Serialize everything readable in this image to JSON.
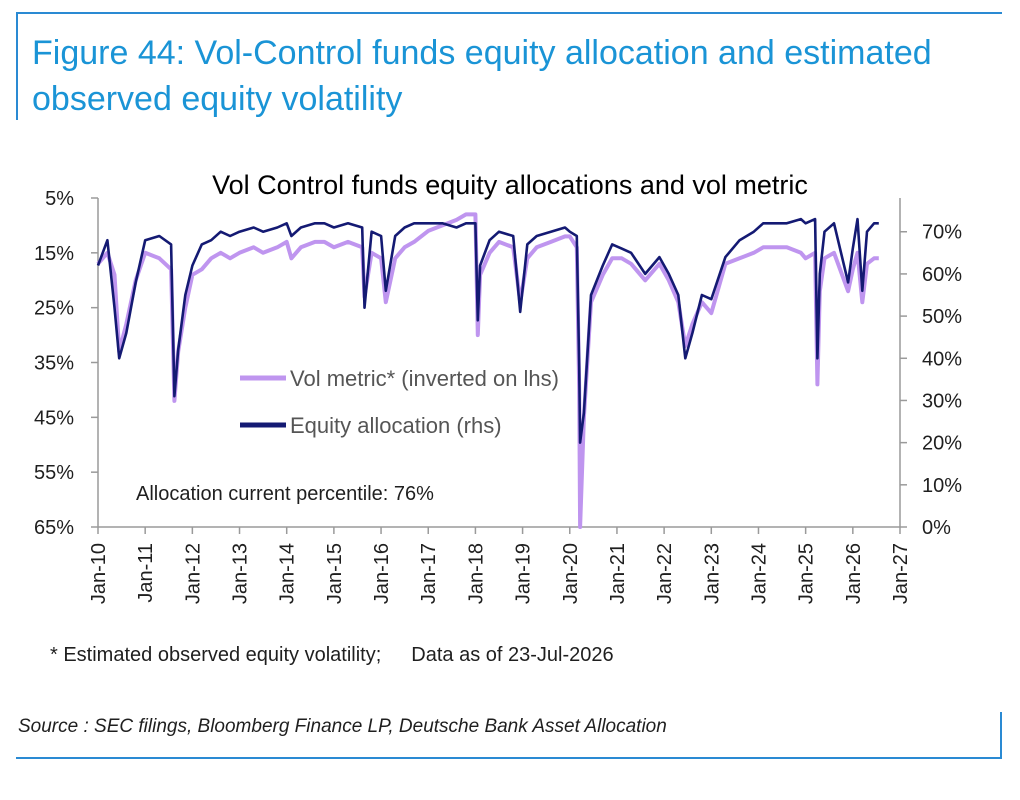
{
  "figure_title": "Figure 44: Vol-Control funds equity allocation and estimated observed equity volatility",
  "footnote": {
    "left": "* Estimated observed equity volatility;",
    "right": "Data as of 23-Jul-2026"
  },
  "source": "Source : SEC filings, Bloomberg Finance LP, Deutsche Bank Asset Allocation",
  "colors": {
    "frame": "#2a8ad3",
    "title": "#1a94d6",
    "vol_metric": "#bf95ef",
    "equity_allocation": "#141a73",
    "axis": "#9a9a9a"
  },
  "chart_data": {
    "type": "line",
    "title": "Vol Control funds equity allocations and vol metric",
    "annotation": "Allocation current percentile: 76%",
    "x_ticks": [
      "Jan-10",
      "Jan-11",
      "Jan-12",
      "Jan-13",
      "Jan-14",
      "Jan-15",
      "Jan-16",
      "Jan-17",
      "Jan-18",
      "Jan-19",
      "Jan-20",
      "Jan-21",
      "Jan-22",
      "Jan-23",
      "Jan-24",
      "Jan-25",
      "Jan-26",
      "Jan-27"
    ],
    "x_range": [
      2010.0,
      2027.0
    ],
    "y_left": {
      "ticks": [
        "5%",
        "15%",
        "25%",
        "35%",
        "45%",
        "55%",
        "65%"
      ],
      "range": [
        5,
        65
      ],
      "inverted": true
    },
    "y_right": {
      "ticks": [
        "0%",
        "10%",
        "20%",
        "30%",
        "40%",
        "50%",
        "60%",
        "70%"
      ],
      "range": [
        0,
        78
      ]
    },
    "series": [
      {
        "name": "Vol metric* (inverted on lhs)",
        "axis": "left",
        "x": [
          2010.0,
          2010.2,
          2010.35,
          2010.45,
          2010.6,
          2010.8,
          2011.0,
          2011.3,
          2011.55,
          2011.62,
          2011.7,
          2011.85,
          2012.0,
          2012.2,
          2012.4,
          2012.6,
          2012.8,
          2013.0,
          2013.3,
          2013.5,
          2013.8,
          2014.0,
          2014.1,
          2014.3,
          2014.6,
          2014.8,
          2015.0,
          2015.3,
          2015.6,
          2015.65,
          2015.8,
          2016.0,
          2016.1,
          2016.3,
          2016.5,
          2016.7,
          2017.0,
          2017.3,
          2017.6,
          2017.8,
          2018.0,
          2018.05,
          2018.1,
          2018.3,
          2018.5,
          2018.8,
          2018.95,
          2019.1,
          2019.3,
          2019.6,
          2019.9,
          2020.0,
          2020.15,
          2020.2,
          2020.22,
          2020.3,
          2020.45,
          2020.7,
          2020.9,
          2021.1,
          2021.3,
          2021.6,
          2021.9,
          2022.1,
          2022.3,
          2022.45,
          2022.6,
          2022.8,
          2023.0,
          2023.3,
          2023.6,
          2023.9,
          2024.1,
          2024.4,
          2024.6,
          2024.9,
          2025.0,
          2025.2,
          2025.25,
          2025.3,
          2025.4,
          2025.6,
          2025.9,
          2026.0,
          2026.1,
          2026.2,
          2026.3,
          2026.45,
          2026.55
        ],
        "values": [
          17,
          15,
          19,
          33,
          28,
          20,
          15,
          16,
          18,
          42,
          33,
          25,
          19,
          18,
          16,
          15,
          16,
          15,
          14,
          15,
          14,
          13,
          16,
          14,
          13,
          13,
          14,
          13,
          14,
          23,
          15,
          16,
          24,
          16,
          14,
          13,
          11,
          10,
          9,
          8,
          8,
          30,
          19,
          15,
          13,
          14,
          24,
          16,
          14,
          13,
          12,
          12,
          14,
          40,
          65,
          45,
          24,
          19,
          16,
          16,
          17,
          20,
          17,
          20,
          24,
          32,
          28,
          24,
          26,
          17,
          16,
          15,
          14,
          14,
          14,
          15,
          16,
          15,
          39,
          22,
          16,
          15,
          22,
          18,
          15,
          24,
          17,
          16,
          16
        ]
      },
      {
        "name": "Equity allocation (rhs)",
        "axis": "right",
        "x": [
          2010.0,
          2010.2,
          2010.35,
          2010.45,
          2010.6,
          2010.8,
          2011.0,
          2011.3,
          2011.55,
          2011.62,
          2011.7,
          2011.85,
          2012.0,
          2012.2,
          2012.4,
          2012.6,
          2012.8,
          2013.0,
          2013.3,
          2013.5,
          2013.8,
          2014.0,
          2014.1,
          2014.3,
          2014.6,
          2014.8,
          2015.0,
          2015.3,
          2015.6,
          2015.65,
          2015.8,
          2016.0,
          2016.1,
          2016.3,
          2016.5,
          2016.7,
          2017.0,
          2017.3,
          2017.6,
          2017.8,
          2018.0,
          2018.05,
          2018.1,
          2018.3,
          2018.5,
          2018.8,
          2018.95,
          2019.1,
          2019.3,
          2019.6,
          2019.9,
          2020.0,
          2020.15,
          2020.2,
          2020.22,
          2020.3,
          2020.45,
          2020.7,
          2020.9,
          2021.1,
          2021.3,
          2021.6,
          2021.9,
          2022.1,
          2022.3,
          2022.45,
          2022.6,
          2022.8,
          2023.0,
          2023.3,
          2023.6,
          2023.9,
          2024.1,
          2024.4,
          2024.6,
          2024.9,
          2025.0,
          2025.2,
          2025.25,
          2025.3,
          2025.4,
          2025.6,
          2025.9,
          2026.0,
          2026.1,
          2026.2,
          2026.3,
          2026.45,
          2026.55
        ],
        "values": [
          62,
          68,
          52,
          40,
          46,
          58,
          68,
          69,
          67,
          31,
          42,
          55,
          62,
          67,
          68,
          70,
          69,
          70,
          71,
          70,
          71,
          72,
          69,
          71,
          72,
          72,
          71,
          72,
          71,
          52,
          70,
          69,
          56,
          69,
          71,
          72,
          72,
          72,
          71,
          72,
          72,
          49,
          62,
          68,
          70,
          69,
          51,
          67,
          69,
          70,
          71,
          70,
          69,
          38,
          20,
          27,
          55,
          62,
          67,
          66,
          65,
          60,
          64,
          60,
          55,
          40,
          46,
          55,
          54,
          64,
          68,
          70,
          72,
          72,
          72,
          73,
          72,
          73,
          40,
          60,
          70,
          72,
          58,
          66,
          73,
          56,
          70,
          72,
          72
        ]
      }
    ]
  }
}
